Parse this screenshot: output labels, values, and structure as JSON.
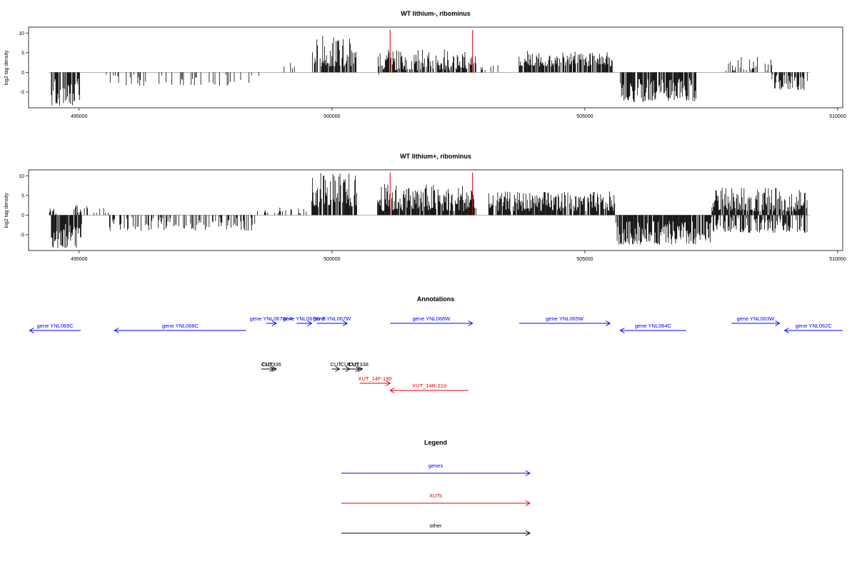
{
  "colors": {
    "gene": "#0000ff",
    "xut": "#e00000",
    "other": "#000000",
    "marker": "#cc0000",
    "bar": "#000000"
  },
  "x_axis": {
    "ticks": [
      495000,
      500000,
      505000,
      510000
    ],
    "min": 494000,
    "max": 510100
  },
  "panels": [
    {
      "title": "WT lithium-, ribominus",
      "ylabel": "log2 tag density",
      "yticks": [
        10,
        5,
        0,
        -5
      ],
      "ylim": [
        -9,
        11.5
      ],
      "marker_positions": [
        501150,
        502780
      ]
    },
    {
      "title": "WT lithium+, ribominus",
      "ylabel": "log2 tag density",
      "yticks": [
        10,
        5,
        0,
        -5
      ],
      "ylim": [
        -9,
        11.5
      ],
      "marker_positions": [
        501150,
        502780
      ]
    }
  ],
  "chart_data": [
    {
      "type": "bar",
      "title": "WT lithium-, ribominus",
      "xlabel": "",
      "ylabel": "log2 tag density",
      "xlim": [
        494000,
        510100
      ],
      "ylim": [
        -9,
        11.5
      ],
      "grid": false,
      "segments": [
        {
          "x": [
            494450,
            495030
          ],
          "min": -8.5,
          "max": -1.5,
          "sign": "neg",
          "density": 0.75
        },
        {
          "x": [
            495500,
            498700
          ],
          "min": -3.5,
          "max": -0.5,
          "sign": "neg",
          "density": 0.2
        },
        {
          "x": [
            498900,
            499400
          ],
          "min": 1,
          "max": 2.5,
          "sign": "pos",
          "density": 0.15
        },
        {
          "x": [
            499600,
            500500
          ],
          "min": 1.5,
          "max": 9.5,
          "sign": "pos",
          "density": 0.8
        },
        {
          "x": [
            500900,
            501000
          ],
          "min": -1.5,
          "max": -0.5,
          "sign": "neg",
          "density": 0.3
        },
        {
          "x": [
            500900,
            502850
          ],
          "min": 0.5,
          "max": 6,
          "sign": "pos",
          "density": 0.8
        },
        {
          "x": [
            502950,
            503300
          ],
          "min": 0.5,
          "max": 2,
          "sign": "pos",
          "density": 0.3
        },
        {
          "x": [
            503700,
            505550
          ],
          "min": 1.5,
          "max": 5.5,
          "sign": "pos",
          "density": 0.8
        },
        {
          "x": [
            505700,
            507200
          ],
          "min": -7.5,
          "max": -1.5,
          "sign": "neg",
          "density": 0.85
        },
        {
          "x": [
            507700,
            508700
          ],
          "min": 0.5,
          "max": 4,
          "sign": "pos",
          "density": 0.35
        },
        {
          "x": [
            508700,
            509400
          ],
          "min": -4.5,
          "max": -0.5,
          "sign": "neg",
          "density": 0.7
        }
      ],
      "markers": [
        {
          "x": 501150,
          "y": 10.8
        },
        {
          "x": 502780,
          "y": 10.8
        }
      ]
    },
    {
      "type": "bar",
      "title": "WT lithium+, ribominus",
      "xlabel": "",
      "ylabel": "log2 tag density",
      "xlim": [
        494000,
        510100
      ],
      "ylim": [
        -9,
        11.5
      ],
      "grid": false,
      "segments": [
        {
          "x": [
            494400,
            494550
          ],
          "min": 0.5,
          "max": 2.5,
          "sign": "pos",
          "density": 0.5
        },
        {
          "x": [
            494450,
            495050
          ],
          "min": -8.5,
          "max": -2,
          "sign": "neg",
          "density": 0.9
        },
        {
          "x": [
            494900,
            495600
          ],
          "min": 0.5,
          "max": 3,
          "sign": "pos",
          "density": 0.3
        },
        {
          "x": [
            495600,
            498500
          ],
          "min": -4,
          "max": -0.5,
          "sign": "neg",
          "density": 0.35
        },
        {
          "x": [
            498500,
            499500
          ],
          "min": 0.5,
          "max": 2,
          "sign": "pos",
          "density": 0.2
        },
        {
          "x": [
            499600,
            500500
          ],
          "min": 2,
          "max": 10.8,
          "sign": "pos",
          "density": 0.85
        },
        {
          "x": [
            500900,
            502850
          ],
          "min": 1,
          "max": 8,
          "sign": "pos",
          "density": 0.9
        },
        {
          "x": [
            503100,
            505600
          ],
          "min": 1,
          "max": 6,
          "sign": "pos",
          "density": 0.85
        },
        {
          "x": [
            505600,
            507500
          ],
          "min": -7.5,
          "max": -1.5,
          "sign": "neg",
          "density": 0.9
        },
        {
          "x": [
            507500,
            509400
          ],
          "min": 1,
          "max": 7,
          "sign": "pos",
          "density": 0.85
        },
        {
          "x": [
            507500,
            509400
          ],
          "min": -4.5,
          "max": -0.5,
          "sign": "neg",
          "density": 0.6
        }
      ],
      "markers": [
        {
          "x": 501150,
          "y": 10.8
        },
        {
          "x": 502780,
          "y": 10.8
        }
      ]
    }
  ],
  "annotations": {
    "title": "Annotations",
    "items": [
      {
        "label": "gene YNL069C",
        "type": "gene",
        "start": 495030,
        "end": 494020,
        "row": 0
      },
      {
        "label": "gene YNL068C",
        "type": "gene",
        "start": 498300,
        "end": 495700,
        "row": 0
      },
      {
        "label": "gene YNL067W-A",
        "type": "gene",
        "start": 498700,
        "end": 498900,
        "row": 1
      },
      {
        "label": "gene YNL067W-B",
        "type": "gene",
        "start": 499300,
        "end": 499600,
        "row": 1
      },
      {
        "label": "gene YNL067W",
        "type": "gene",
        "start": 499700,
        "end": 500300,
        "row": 1
      },
      {
        "label": "gene YNL066W",
        "type": "gene",
        "start": 501150,
        "end": 502780,
        "row": 1
      },
      {
        "label": "gene YNL065W",
        "type": "gene",
        "start": 503700,
        "end": 505500,
        "row": 1
      },
      {
        "label": "gene YNL064C",
        "type": "gene",
        "start": 507000,
        "end": 505700,
        "row": 0
      },
      {
        "label": "gene YNL063W",
        "type": "gene",
        "start": 507900,
        "end": 508850,
        "row": 1
      },
      {
        "label": "gene YNL062C",
        "type": "gene",
        "start": 510100,
        "end": 508950,
        "row": 0
      },
      {
        "label": "CUT",
        "type": "other",
        "start": 498600,
        "end": 498850,
        "row": 2
      },
      {
        "label": "CUT336",
        "type": "other",
        "start": 498700,
        "end": 498900,
        "row": 2
      },
      {
        "label": "CUT",
        "type": "other",
        "start": 500000,
        "end": 500150,
        "row": 2
      },
      {
        "label": "CUT",
        "type": "other",
        "start": 500200,
        "end": 500350,
        "row": 2
      },
      {
        "label": "CUT",
        "type": "other",
        "start": 500300,
        "end": 500550,
        "row": 2
      },
      {
        "label": "CUT338",
        "type": "other",
        "start": 500450,
        "end": 500600,
        "row": 2
      },
      {
        "label": "XUT_14F-190",
        "type": "xut",
        "start": 500550,
        "end": 501150,
        "row": 3
      },
      {
        "label": "XUT_14R-210",
        "type": "xut",
        "start": 502700,
        "end": 501150,
        "row": 4
      }
    ]
  },
  "legend": {
    "title": "Legend",
    "items": [
      {
        "label": "genes",
        "type": "gene"
      },
      {
        "label": "XUTs",
        "type": "xut"
      },
      {
        "label": "other",
        "type": "other"
      }
    ]
  }
}
